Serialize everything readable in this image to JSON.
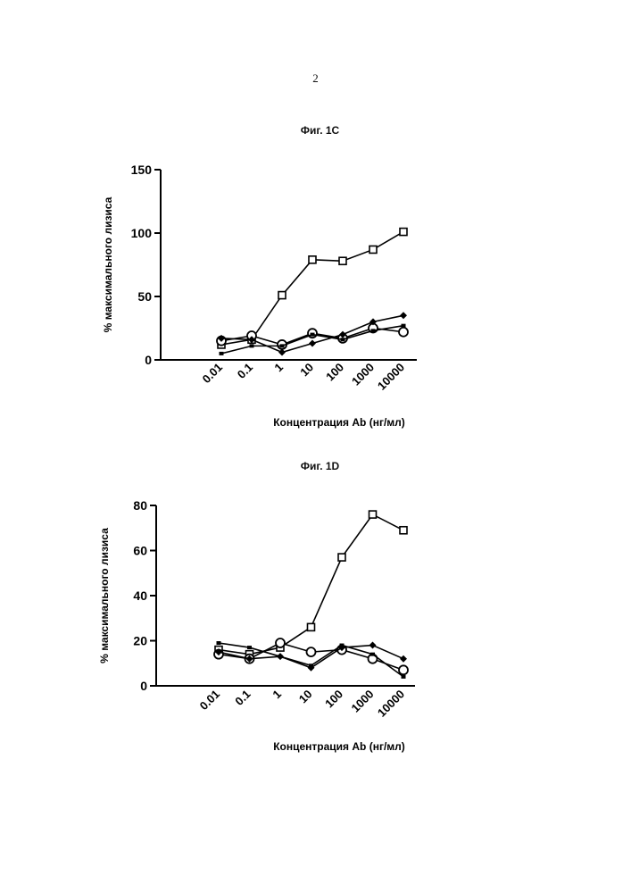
{
  "page_number": "2",
  "chart_data": [
    {
      "type": "line",
      "title": "Фиг. 1C",
      "xlabel": "Концентрация Ab (нг/мл)",
      "ylabel": "% максимального лизиса",
      "xscale": "log",
      "categories": [
        "0.01",
        "0.1",
        "1",
        "10",
        "100",
        "1000",
        "10000"
      ],
      "x": [
        0.01,
        0.1,
        1,
        10,
        100,
        1000,
        10000
      ],
      "ylim": [
        0,
        150
      ],
      "yticks": [
        0,
        50,
        100,
        150
      ],
      "series": [
        {
          "name": "open-square",
          "marker": "open-square",
          "values": [
            12,
            16,
            51,
            79,
            78,
            87,
            101
          ]
        },
        {
          "name": "open-circle",
          "marker": "open-circle",
          "values": [
            15,
            19,
            12,
            21,
            17,
            25,
            22
          ]
        },
        {
          "name": "filled-diamond",
          "marker": "filled-diamond",
          "values": [
            17,
            16,
            6,
            13,
            20,
            30,
            35
          ]
        },
        {
          "name": "filled-square",
          "marker": "filled-square",
          "values": [
            5,
            11,
            11,
            20,
            16,
            23,
            27
          ]
        }
      ]
    },
    {
      "type": "line",
      "title": "Фиг. 1D",
      "xlabel": "Концентрация Ab (нг/мл)",
      "ylabel": "% максимального лизиса",
      "xscale": "log",
      "categories": [
        "0.01",
        "0.1",
        "1",
        "10",
        "100",
        "1000",
        "10000"
      ],
      "x": [
        0.01,
        0.1,
        1,
        10,
        100,
        1000,
        10000
      ],
      "ylim": [
        0,
        80
      ],
      "yticks": [
        0,
        20,
        40,
        60,
        80
      ],
      "series": [
        {
          "name": "open-square",
          "marker": "open-square",
          "values": [
            16,
            14,
            17,
            26,
            57,
            76,
            69
          ]
        },
        {
          "name": "open-circle",
          "marker": "open-circle",
          "values": [
            14,
            12,
            19,
            15,
            16,
            12,
            7
          ]
        },
        {
          "name": "filled-diamond",
          "marker": "filled-diamond",
          "values": [
            15,
            12,
            13,
            8,
            17,
            18,
            12
          ]
        },
        {
          "name": "filled-square",
          "marker": "filled-square",
          "values": [
            19,
            17,
            13,
            9,
            18,
            14,
            4
          ]
        }
      ]
    }
  ]
}
